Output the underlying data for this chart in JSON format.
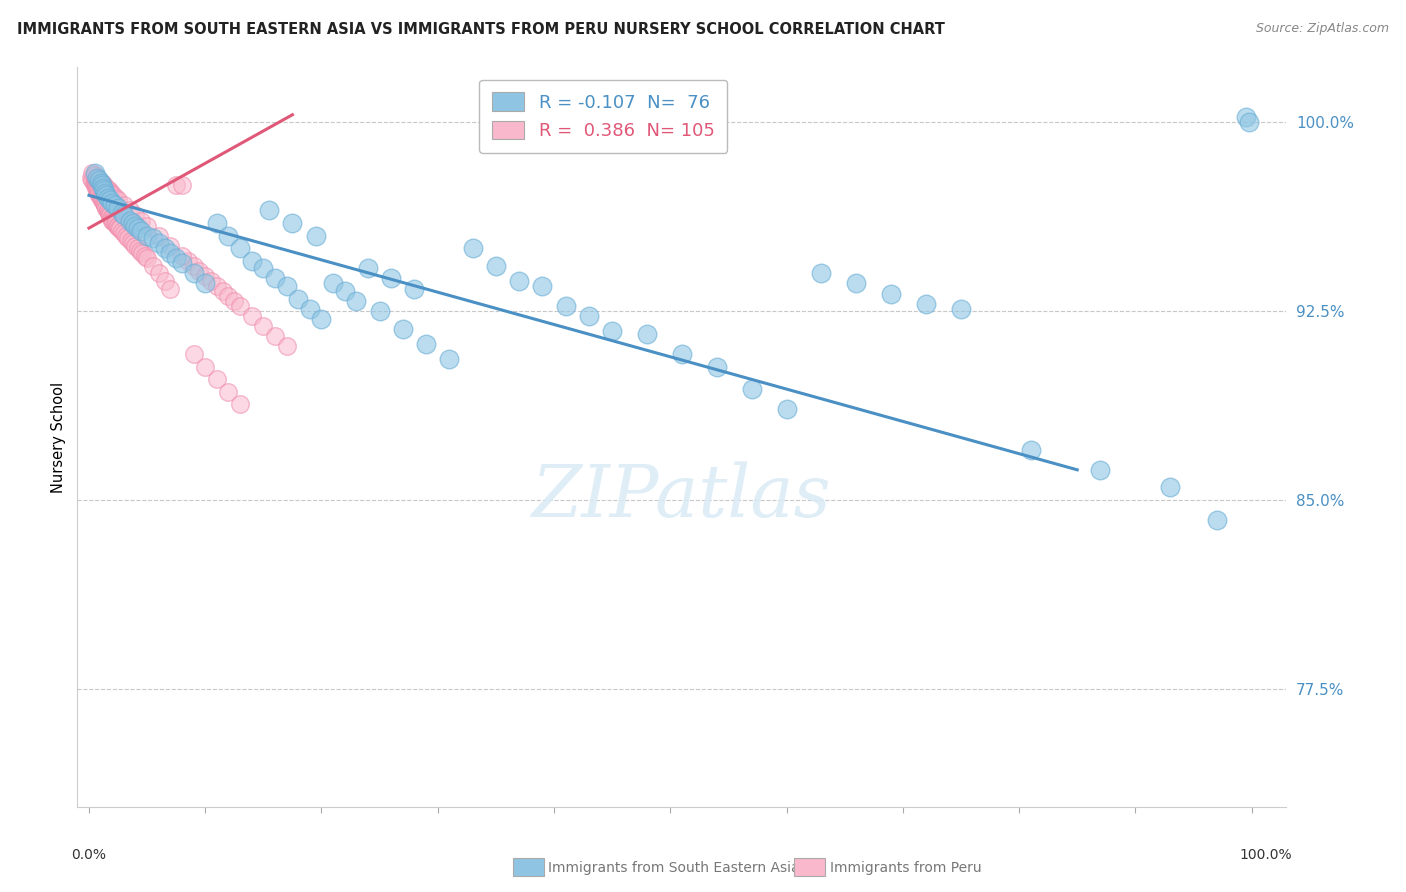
{
  "title": "IMMIGRANTS FROM SOUTH EASTERN ASIA VS IMMIGRANTS FROM PERU NURSERY SCHOOL CORRELATION CHART",
  "source": "Source: ZipAtlas.com",
  "ylabel": "Nursery School",
  "legend_blue_R": "-0.107",
  "legend_blue_N": "76",
  "legend_pink_R": "0.386",
  "legend_pink_N": "105",
  "legend_label_blue": "Immigrants from South Eastern Asia",
  "legend_label_pink": "Immigrants from Peru",
  "ytick_vals": [
    0.775,
    0.85,
    0.925,
    1.0
  ],
  "ytick_labels": [
    "77.5%",
    "85.0%",
    "92.5%",
    "100.0%"
  ],
  "xlim": [
    -0.01,
    1.03
  ],
  "ylim": [
    0.728,
    1.022
  ],
  "blue_color": "#8fc5e3",
  "blue_edge_color": "#6baed6",
  "pink_color": "#f9b8cc",
  "pink_edge_color": "#f08aaa",
  "trendline_blue_color": "#4a90c4",
  "trendline_pink_color": "#e05878",
  "watermark": "ZIPatlas",
  "grid_color": "#c8c8c8",
  "title_color": "#222222",
  "ytick_color": "#4a90c4",
  "source_color": "#888888",
  "blue_trendline_x": [
    0.0,
    0.85
  ],
  "blue_trendline_y": [
    0.971,
    0.862
  ],
  "pink_trendline_x": [
    0.0,
    0.175
  ],
  "pink_trendline_y": [
    0.958,
    1.003
  ],
  "blue_x": [
    0.005,
    0.007,
    0.009,
    0.01,
    0.011,
    0.012,
    0.013,
    0.014,
    0.015,
    0.016,
    0.018,
    0.02,
    0.022,
    0.025,
    0.028,
    0.03,
    0.035,
    0.038,
    0.04,
    0.042,
    0.045,
    0.05,
    0.055,
    0.06,
    0.065,
    0.07,
    0.075,
    0.08,
    0.09,
    0.1,
    0.11,
    0.12,
    0.13,
    0.14,
    0.15,
    0.16,
    0.17,
    0.18,
    0.19,
    0.2,
    0.21,
    0.22,
    0.23,
    0.25,
    0.27,
    0.29,
    0.31,
    0.33,
    0.35,
    0.37,
    0.39,
    0.41,
    0.43,
    0.45,
    0.48,
    0.51,
    0.54,
    0.57,
    0.6,
    0.63,
    0.66,
    0.69,
    0.72,
    0.75,
    0.81,
    0.87,
    0.93,
    0.97,
    0.995,
    0.998,
    0.155,
    0.175,
    0.195,
    0.24,
    0.26,
    0.28
  ],
  "blue_y": [
    0.98,
    0.978,
    0.977,
    0.976,
    0.975,
    0.974,
    0.973,
    0.972,
    0.971,
    0.97,
    0.969,
    0.968,
    0.967,
    0.966,
    0.964,
    0.963,
    0.961,
    0.96,
    0.959,
    0.958,
    0.957,
    0.955,
    0.954,
    0.952,
    0.95,
    0.948,
    0.946,
    0.944,
    0.94,
    0.936,
    0.96,
    0.955,
    0.95,
    0.945,
    0.942,
    0.938,
    0.935,
    0.93,
    0.926,
    0.922,
    0.936,
    0.933,
    0.929,
    0.925,
    0.918,
    0.912,
    0.906,
    0.95,
    0.943,
    0.937,
    0.935,
    0.927,
    0.923,
    0.917,
    0.916,
    0.908,
    0.903,
    0.894,
    0.886,
    0.94,
    0.936,
    0.932,
    0.928,
    0.926,
    0.87,
    0.862,
    0.855,
    0.842,
    1.002,
    1.0,
    0.965,
    0.96,
    0.955,
    0.942,
    0.938,
    0.934
  ],
  "pink_x": [
    0.002,
    0.003,
    0.004,
    0.005,
    0.005,
    0.006,
    0.006,
    0.007,
    0.007,
    0.008,
    0.008,
    0.009,
    0.009,
    0.01,
    0.01,
    0.011,
    0.011,
    0.012,
    0.013,
    0.013,
    0.014,
    0.014,
    0.015,
    0.015,
    0.016,
    0.016,
    0.017,
    0.017,
    0.018,
    0.018,
    0.019,
    0.02,
    0.02,
    0.021,
    0.022,
    0.023,
    0.024,
    0.025,
    0.026,
    0.027,
    0.028,
    0.03,
    0.032,
    0.034,
    0.036,
    0.038,
    0.04,
    0.042,
    0.044,
    0.046,
    0.048,
    0.05,
    0.055,
    0.06,
    0.065,
    0.07,
    0.075,
    0.08,
    0.085,
    0.09,
    0.095,
    0.1,
    0.105,
    0.11,
    0.115,
    0.12,
    0.125,
    0.13,
    0.14,
    0.15,
    0.16,
    0.17,
    0.004,
    0.006,
    0.008,
    0.01,
    0.012,
    0.014,
    0.016,
    0.018,
    0.003,
    0.005,
    0.007,
    0.009,
    0.011,
    0.013,
    0.015,
    0.017,
    0.019,
    0.021,
    0.023,
    0.025,
    0.03,
    0.035,
    0.04,
    0.045,
    0.05,
    0.06,
    0.07,
    0.08,
    0.09,
    0.1,
    0.11,
    0.12,
    0.13
  ],
  "pink_y": [
    0.978,
    0.977,
    0.976,
    0.976,
    0.975,
    0.975,
    0.974,
    0.974,
    0.973,
    0.973,
    0.972,
    0.972,
    0.971,
    0.971,
    0.97,
    0.97,
    0.969,
    0.969,
    0.968,
    0.968,
    0.967,
    0.967,
    0.966,
    0.966,
    0.965,
    0.965,
    0.964,
    0.964,
    0.963,
    0.963,
    0.962,
    0.962,
    0.961,
    0.961,
    0.96,
    0.96,
    0.959,
    0.959,
    0.958,
    0.958,
    0.957,
    0.956,
    0.955,
    0.954,
    0.953,
    0.952,
    0.951,
    0.95,
    0.949,
    0.948,
    0.947,
    0.946,
    0.943,
    0.94,
    0.937,
    0.934,
    0.975,
    0.975,
    0.945,
    0.943,
    0.941,
    0.939,
    0.937,
    0.935,
    0.933,
    0.931,
    0.929,
    0.927,
    0.923,
    0.919,
    0.915,
    0.911,
    0.979,
    0.978,
    0.977,
    0.976,
    0.975,
    0.974,
    0.973,
    0.972,
    0.98,
    0.979,
    0.978,
    0.977,
    0.976,
    0.975,
    0.974,
    0.973,
    0.972,
    0.971,
    0.97,
    0.969,
    0.967,
    0.965,
    0.963,
    0.961,
    0.959,
    0.955,
    0.951,
    0.947,
    0.908,
    0.903,
    0.898,
    0.893,
    0.888
  ]
}
